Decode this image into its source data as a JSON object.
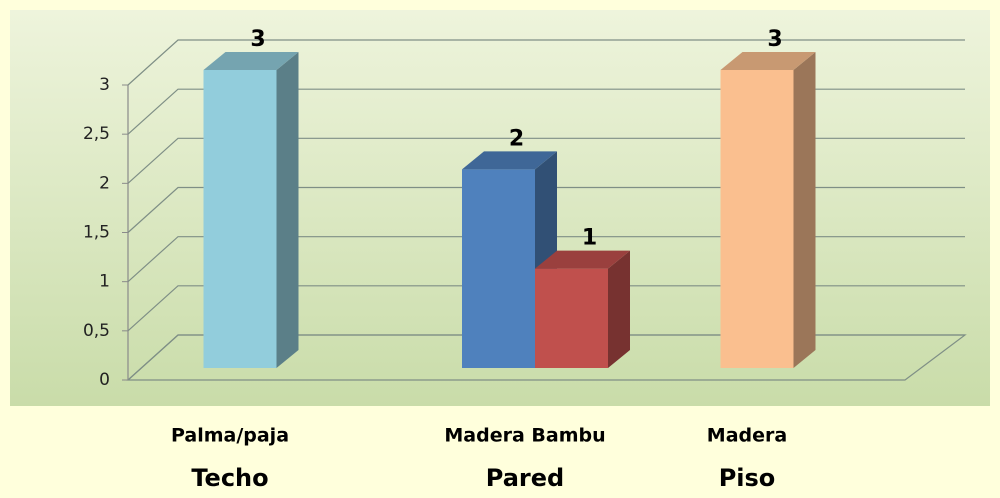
{
  "chart_data": {
    "type": "bar",
    "groups": [
      {
        "name": "Techo",
        "label": "Palma/paja",
        "bars": [
          {
            "value": 3,
            "color": "#92cddc"
          }
        ]
      },
      {
        "name": "Pared",
        "label": "Madera Bambu",
        "bars": [
          {
            "value": 2,
            "color": "#4f81bd"
          },
          {
            "value": 1,
            "color": "#c0504d"
          }
        ]
      },
      {
        "name": "Piso",
        "label": "Madera",
        "bars": [
          {
            "value": 3,
            "color": "#fabf8f"
          }
        ]
      }
    ],
    "ylim": [
      0,
      3
    ],
    "yticks": [
      0,
      {
        "value": 0.5,
        "label": "0,5"
      },
      1,
      {
        "value": 1.5,
        "label": "1,5"
      },
      2,
      {
        "value": 2.5,
        "label": "2,5"
      },
      3
    ],
    "grid": true
  }
}
